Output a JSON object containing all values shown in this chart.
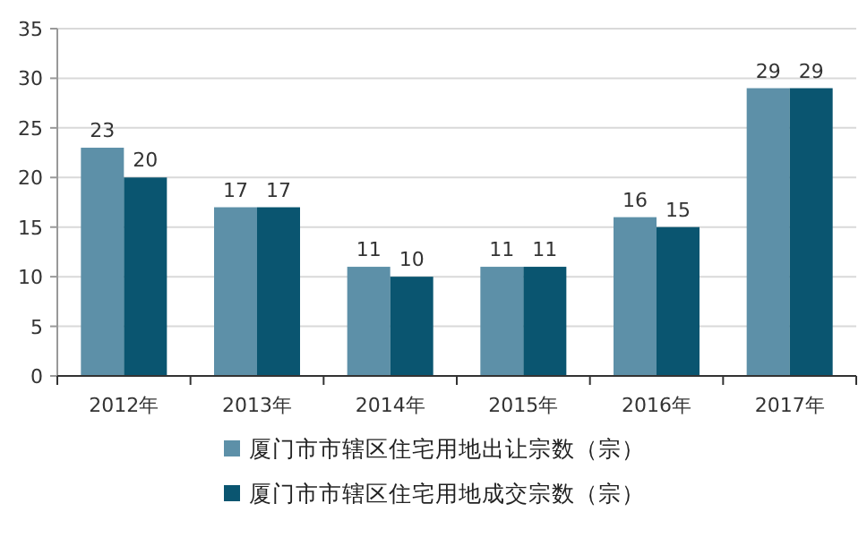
{
  "chart_data": {
    "type": "bar",
    "categories": [
      "2012年",
      "2013年",
      "2014年",
      "2015年",
      "2016年",
      "2017年"
    ],
    "series": [
      {
        "name": "厦门市市辖区住宅用地出让宗数（宗）",
        "color": "#5d90a8",
        "values": [
          23,
          17,
          11,
          11,
          16,
          29
        ]
      },
      {
        "name": "厦门市市辖区住宅用地成交宗数（宗）",
        "color": "#0a5570",
        "values": [
          20,
          17,
          10,
          11,
          15,
          29
        ]
      }
    ],
    "ylim": [
      0,
      35
    ],
    "yticks": [
      0,
      5,
      10,
      15,
      20,
      25,
      30,
      35
    ],
    "grid": "y",
    "legend": "bottom",
    "data_labels": true
  }
}
